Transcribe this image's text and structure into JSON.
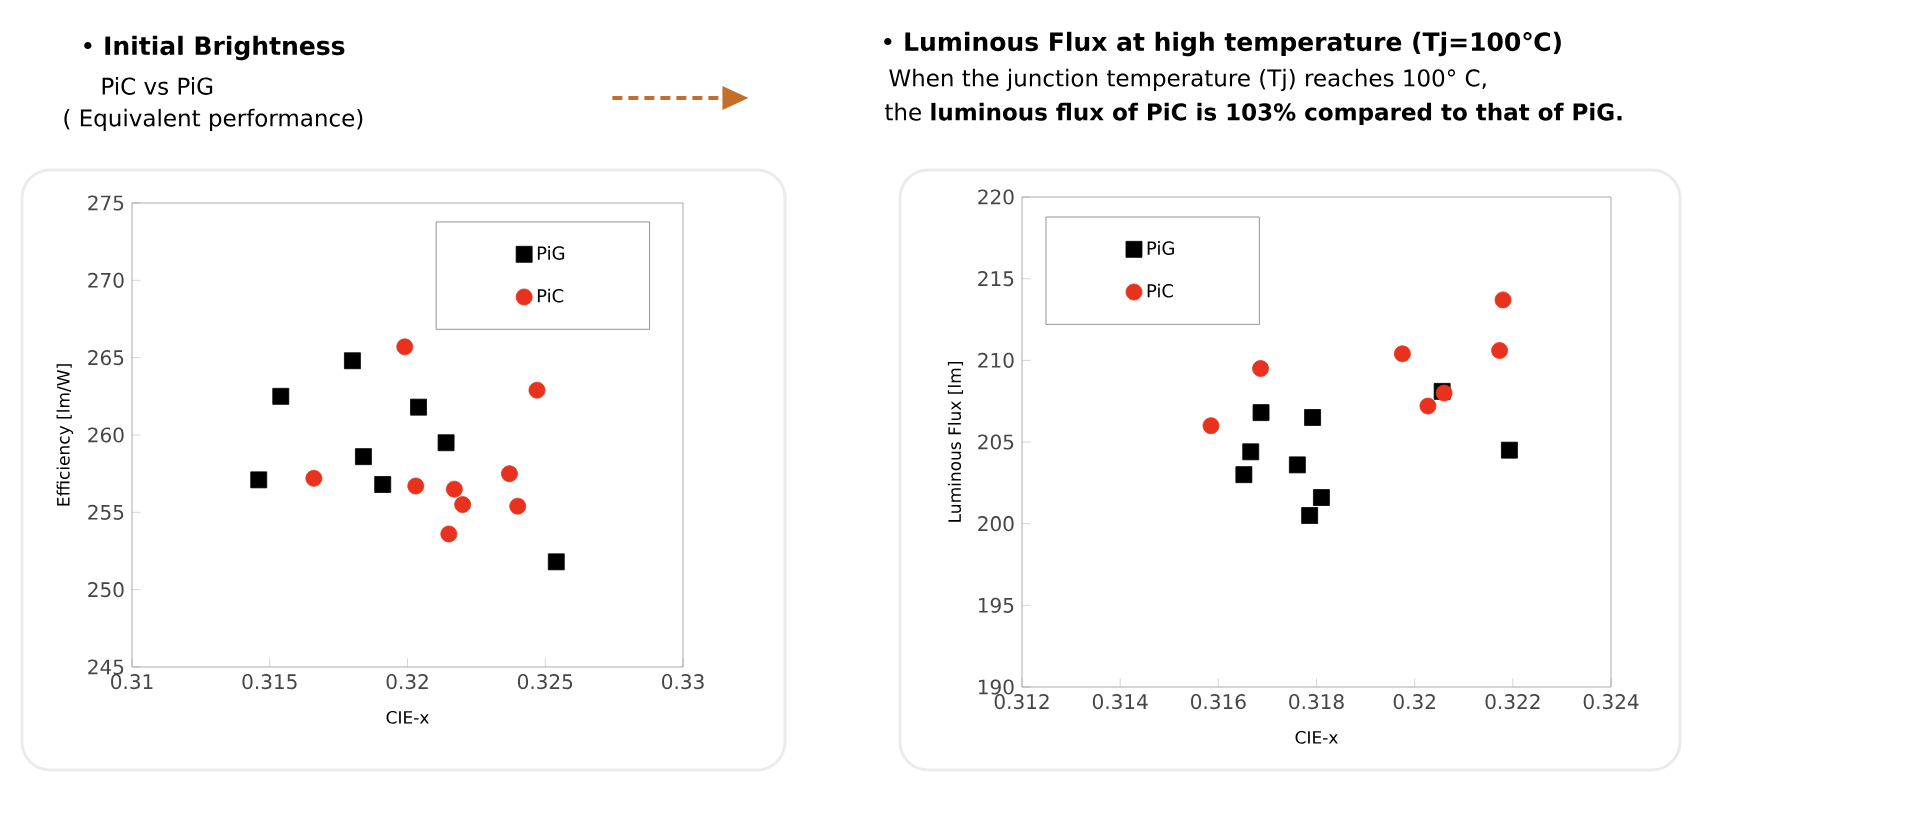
{
  "chart_data": [
    {
      "type": "scatter",
      "title": "• **Initial Brightness**",
      "subtitle": "PiC vs PiG",
      "annotations": [
        "( Equivalent performance)"
      ],
      "xlabel": "CIE-x",
      "ylabel": "Efficiency [lm/W]",
      "xlim": [
        0.31,
        0.33
      ],
      "ylim": [
        245,
        275
      ],
      "xticks": [
        0.31,
        0.315,
        0.32,
        0.325,
        0.33
      ],
      "yticks": [
        245,
        250,
        255,
        260,
        265,
        270,
        275
      ],
      "legend": "top right",
      "grid": false,
      "series": [
        {
          "name": "PiG",
          "color": "#000000",
          "marker": "square",
          "x": [
            0.3146,
            0.3154,
            0.318,
            0.3184,
            0.3191,
            0.3204,
            0.3214,
            0.3254
          ],
          "values": [
            257.1,
            262.5,
            264.8,
            258.6,
            256.8,
            261.8,
            259.5,
            251.8
          ]
        },
        {
          "name": "PiC",
          "color": "#e8321e",
          "marker": "circle",
          "x": [
            0.3166,
            0.3199,
            0.3203,
            0.3217,
            0.322,
            0.3215,
            0.3237,
            0.324,
            0.3247
          ],
          "values": [
            257.2,
            265.7,
            256.7,
            256.5,
            255.5,
            253.6,
            257.5,
            255.4,
            262.9
          ]
        }
      ]
    },
    {
      "type": "scatter",
      "title": "• **Luminous Flux at high temperature (Tj=100℃)**",
      "subtitle": "When the junction temperature (Tj) reaches 100° C,",
      "annotations": [
        "the  **luminous flux of PiC is 103% compared to that of PiG.**"
      ],
      "xlabel": "CIE-x",
      "ylabel": "Luminous Flux [lm]",
      "xlim": [
        0.312,
        0.324
      ],
      "ylim": [
        190,
        220
      ],
      "xticks": [
        0.312,
        0.314,
        0.316,
        0.318,
        0.32,
        0.322,
        0.324
      ],
      "yticks": [
        190,
        195,
        200,
        205,
        210,
        215,
        220
      ],
      "legend": "top left",
      "grid": false,
      "series": [
        {
          "name": "PiG",
          "color": "#000000",
          "marker": "square",
          "x": [
            0.31687,
            0.31666,
            0.31652,
            0.31761,
            0.31792,
            0.3181,
            0.31786,
            0.32056,
            0.32193
          ],
          "values": [
            206.8,
            204.4,
            203.0,
            203.6,
            206.5,
            201.6,
            200.5,
            208.1,
            204.5
          ]
        },
        {
          "name": "PiC",
          "color": "#e8321e",
          "marker": "circle",
          "x": [
            0.31585,
            0.31686,
            0.31975,
            0.32027,
            0.3206,
            0.32173,
            0.3218
          ],
          "values": [
            206.0,
            209.5,
            210.4,
            207.2,
            208.0,
            210.6,
            213.7
          ]
        }
      ]
    }
  ]
}
